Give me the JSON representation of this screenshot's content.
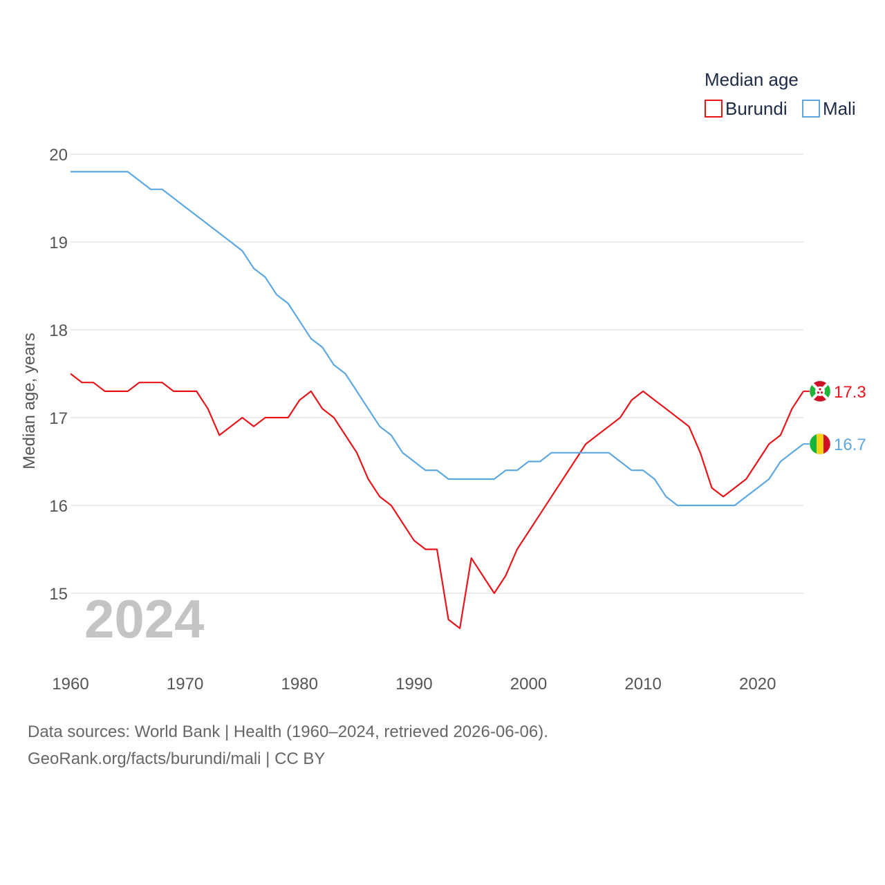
{
  "chart_data": {
    "type": "line",
    "title": "",
    "xlabel": "",
    "ylabel": "Median age, years",
    "xlim": [
      1960,
      2024
    ],
    "ylim": [
      14.3,
      20.2
    ],
    "yticks": [
      15,
      16,
      17,
      18,
      19,
      20
    ],
    "xticks": [
      1960,
      1970,
      1980,
      1990,
      2000,
      2010,
      2020
    ],
    "grid": true,
    "legend_title": "Median age",
    "legend_position": "top-right",
    "watermark_year": "2024",
    "x": [
      1960,
      1961,
      1962,
      1963,
      1964,
      1965,
      1966,
      1967,
      1968,
      1969,
      1970,
      1971,
      1972,
      1973,
      1974,
      1975,
      1976,
      1977,
      1978,
      1979,
      1980,
      1981,
      1982,
      1983,
      1984,
      1985,
      1986,
      1987,
      1988,
      1989,
      1990,
      1991,
      1992,
      1993,
      1994,
      1995,
      1996,
      1997,
      1998,
      1999,
      2000,
      2001,
      2002,
      2003,
      2004,
      2005,
      2006,
      2007,
      2008,
      2009,
      2010,
      2011,
      2012,
      2013,
      2014,
      2015,
      2016,
      2017,
      2018,
      2019,
      2020,
      2021,
      2022,
      2023,
      2024
    ],
    "series": [
      {
        "name": "Burundi",
        "color": "#e8141a",
        "end_label": "17.3",
        "values": [
          17.5,
          17.4,
          17.4,
          17.3,
          17.3,
          17.3,
          17.4,
          17.4,
          17.4,
          17.3,
          17.3,
          17.3,
          17.1,
          16.8,
          16.9,
          17.0,
          16.9,
          17.0,
          17.0,
          17.0,
          17.2,
          17.3,
          17.1,
          17.0,
          16.8,
          16.6,
          16.3,
          16.1,
          16.0,
          15.8,
          15.6,
          15.5,
          15.5,
          14.7,
          14.6,
          15.4,
          15.2,
          15.0,
          15.2,
          15.5,
          15.7,
          15.9,
          16.1,
          16.3,
          16.5,
          16.7,
          16.8,
          16.9,
          17.0,
          17.2,
          17.3,
          17.2,
          17.1,
          17.0,
          16.9,
          16.6,
          16.2,
          16.1,
          16.2,
          16.3,
          16.5,
          16.7,
          16.8,
          17.1,
          17.3
        ]
      },
      {
        "name": "Mali",
        "color": "#5da7e0",
        "end_label": "16.7",
        "values": [
          19.8,
          19.8,
          19.8,
          19.8,
          19.8,
          19.8,
          19.7,
          19.6,
          19.6,
          19.5,
          19.4,
          19.3,
          19.2,
          19.1,
          19.0,
          18.9,
          18.7,
          18.6,
          18.4,
          18.3,
          18.1,
          17.9,
          17.8,
          17.6,
          17.5,
          17.3,
          17.1,
          16.9,
          16.8,
          16.6,
          16.5,
          16.4,
          16.4,
          16.3,
          16.3,
          16.3,
          16.3,
          16.3,
          16.4,
          16.4,
          16.5,
          16.5,
          16.6,
          16.6,
          16.6,
          16.6,
          16.6,
          16.6,
          16.5,
          16.4,
          16.4,
          16.3,
          16.1,
          16.0,
          16.0,
          16.0,
          16.0,
          16.0,
          16.0,
          16.1,
          16.2,
          16.3,
          16.5,
          16.6,
          16.7
        ]
      }
    ]
  },
  "flags": {
    "burundi": {
      "name": "burundi-flag",
      "colors": [
        "#ce1126",
        "#1eb53a",
        "#ffffff"
      ]
    },
    "mali": {
      "name": "mali-flag",
      "colors": [
        "#14b53a",
        "#fcd116",
        "#ce1126"
      ]
    }
  },
  "footer": {
    "sources": "Data sources: World Bank | Health (1960–2024, retrieved 2026-06-06).",
    "link": "GeoRank.org/facts/burundi/mali | CC BY"
  }
}
